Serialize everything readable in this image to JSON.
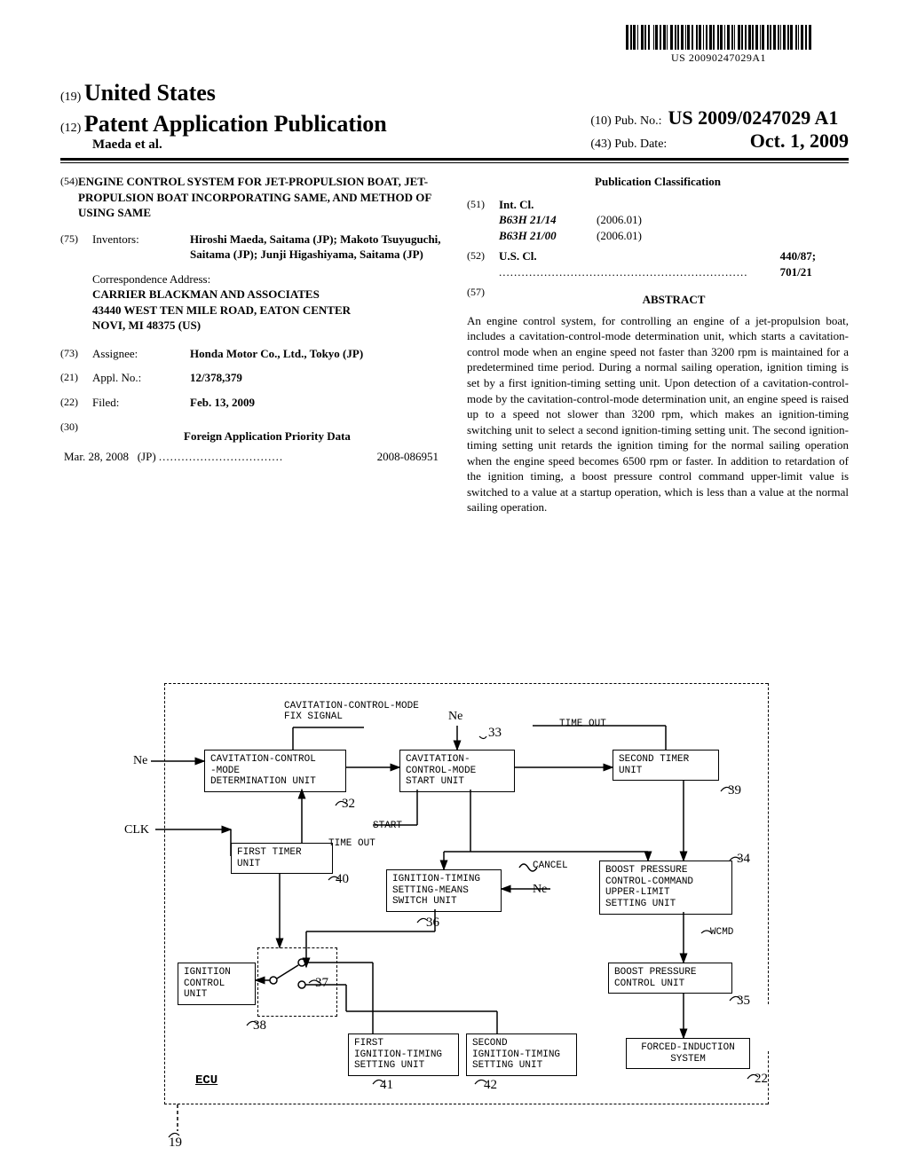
{
  "barcode_number": "US 20090247029A1",
  "header": {
    "country_code": "(19)",
    "country": "United States",
    "kind_code": "(12)",
    "kind": "Patent Application Publication",
    "author_line": "Maeda et al.",
    "pubno_code": "(10)",
    "pubno_label": "Pub. No.:",
    "pubno": "US 2009/0247029 A1",
    "pubdate_code": "(43)",
    "pubdate_label": "Pub. Date:",
    "pubdate": "Oct. 1, 2009"
  },
  "left": {
    "title_code": "(54)",
    "title": "ENGINE CONTROL SYSTEM FOR JET-PROPULSION BOAT, JET-PROPULSION BOAT INCORPORATING SAME, AND METHOD OF USING SAME",
    "inventors_code": "(75)",
    "inventors_label": "Inventors:",
    "inventors": "Hiroshi Maeda, Saitama (JP); Makoto Tsuyuguchi, Saitama (JP); Junji Higashiyama, Saitama (JP)",
    "corr_label": "Correspondence Address:",
    "corr_name": "CARRIER BLACKMAN AND ASSOCIATES",
    "corr_addr1": "43440 WEST TEN MILE ROAD, EATON CENTER",
    "corr_addr2": "NOVI, MI 48375 (US)",
    "assignee_code": "(73)",
    "assignee_label": "Assignee:",
    "assignee": "Honda Motor Co., Ltd., Tokyo (JP)",
    "applno_code": "(21)",
    "applno_label": "Appl. No.:",
    "applno": "12/378,379",
    "filed_code": "(22)",
    "filed_label": "Filed:",
    "filed": "Feb. 13, 2009",
    "foreign_code": "(30)",
    "foreign_hdr": "Foreign Application Priority Data",
    "prio_date": "Mar. 28, 2008",
    "prio_country": "(JP)",
    "prio_num": "2008-086951"
  },
  "right": {
    "pubclass_hdr": "Publication Classification",
    "intcl_code": "(51)",
    "intcl_label": "Int. Cl.",
    "intcl": [
      {
        "code": "B63H 21/14",
        "ver": "(2006.01)"
      },
      {
        "code": "B63H 21/00",
        "ver": "(2006.01)"
      }
    ],
    "uscl_code": "(52)",
    "uscl_label": "U.S. Cl.",
    "uscl_val": "440/87; 701/21",
    "abstract_code": "(57)",
    "abstract_hdr": "ABSTRACT",
    "abstract": "An engine control system, for controlling an engine of a jet-propulsion boat, includes a cavitation-control-mode determination unit, which starts a cavitation-control mode when an engine speed not faster than 3200 rpm is maintained for a predetermined time period. During a normal sailing operation, ignition timing is set by a first ignition-timing setting unit. Upon detection of a cavitation-control-mode by the cavitation-control-mode determination unit, an engine speed is raised up to a speed not slower than 3200 rpm, which makes an ignition-timing switching unit to select a second ignition-timing setting unit. The second ignition-timing setting unit retards the ignition timing for the normal sailing operation when the engine speed becomes 6500 rpm or faster. In addition to retardation of the ignition timing, a boost pressure control command upper-limit value is switched to a value at a startup operation, which is less than a value at the normal sailing operation."
  },
  "diagram": {
    "signals": {
      "ne1": "Ne",
      "ne2": "Ne",
      "ne3": "Ne",
      "clk": "CLK",
      "cav_fix": "CAVITATION-CONTROL-MODE\nFIX SIGNAL",
      "timeout1": "TIME OUT",
      "timeout2": "TIME OUT",
      "start": "START",
      "cancel": "CANCEL",
      "wcmd": "WCMD"
    },
    "boxes": {
      "b32": "CAVITATION-CONTROL\n-MODE\nDETERMINATION UNIT",
      "b33": "CAVITATION-\nCONTROL-MODE\nSTART UNIT",
      "b39": "SECOND TIMER\nUNIT",
      "b40": "FIRST TIMER\nUNIT",
      "b36": "IGNITION-TIMING\nSETTING-MEANS\nSWITCH UNIT",
      "b34": "BOOST PRESSURE\nCONTROL-COMMAND\nUPPER-LIMIT\nSETTING UNIT",
      "b38": "IGNITION\nCONTROL UNIT",
      "b35": "BOOST PRESSURE\nCONTROL UNIT",
      "b41": "FIRST\nIGNITION-TIMING\nSETTING UNIT",
      "b42": "SECOND\nIGNITION-TIMING\nSETTING UNIT",
      "b22": "FORCED-INDUCTION\nSYSTEM"
    },
    "refs": {
      "r32": "32",
      "r33": "33",
      "r34": "34",
      "r35": "35",
      "r36": "36",
      "r37": "37",
      "r38": "38",
      "r39": "39",
      "r40": "40",
      "r41": "41",
      "r42": "42",
      "r22": "22",
      "r19": "19"
    },
    "ecu_label": "ECU"
  }
}
